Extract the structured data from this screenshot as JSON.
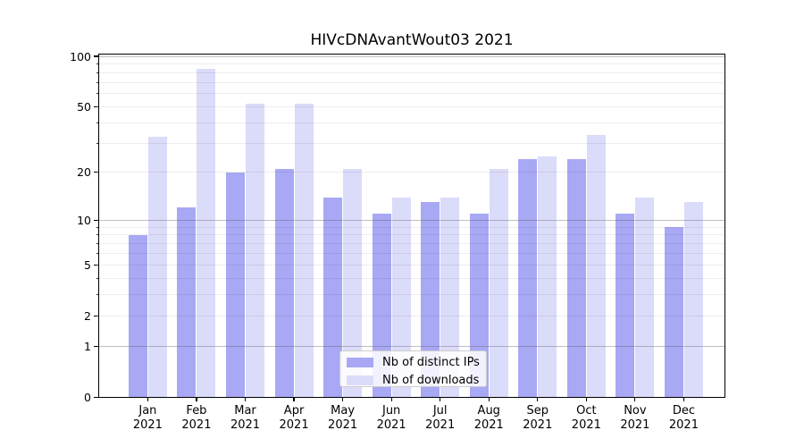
{
  "title": "HIVcDNAvantWout03 2021",
  "legend": {
    "position": "lower center",
    "items": [
      {
        "label": "Nb of distinct IPs",
        "color": "#a8a8f4"
      },
      {
        "label": "Nb of downloads",
        "color": "#dbdbfa"
      }
    ]
  },
  "y_axis": {
    "tick_values": [
      100,
      50,
      20,
      10,
      5,
      2,
      1,
      0
    ],
    "tick_labels": [
      "100",
      "50",
      "20",
      "10",
      "5",
      "2",
      "1",
      "0"
    ]
  },
  "x_axis": {
    "months": [
      "Jan",
      "Feb",
      "Mar",
      "Apr",
      "May",
      "Jun",
      "Jul",
      "Aug",
      "Sep",
      "Oct",
      "Nov",
      "Dec"
    ],
    "year": "2021"
  },
  "chart_data": {
    "type": "bar",
    "title": "HIVcDNAvantWout03 2021",
    "xlabel": "",
    "ylabel": "",
    "scale": "log1p",
    "ylim": [
      0,
      100
    ],
    "y_ticks": [
      0,
      1,
      2,
      5,
      10,
      20,
      50,
      100
    ],
    "grid": true,
    "legend_position": "lower center",
    "categories": [
      "Jan 2021",
      "Feb 2021",
      "Mar 2021",
      "Apr 2021",
      "May 2021",
      "Jun 2021",
      "Jul 2021",
      "Aug 2021",
      "Sep 2021",
      "Oct 2021",
      "Nov 2021",
      "Dec 2021"
    ],
    "series": [
      {
        "name": "Nb of distinct IPs",
        "color": "#a8a8f4",
        "values": [
          8,
          12,
          20,
          21,
          14,
          11,
          13,
          11,
          24,
          24,
          11,
          9
        ]
      },
      {
        "name": "Nb of downloads",
        "color": "#dbdbfa",
        "values": [
          33,
          84,
          52,
          52,
          21,
          14,
          14,
          21,
          25,
          34,
          14,
          13
        ]
      }
    ]
  }
}
